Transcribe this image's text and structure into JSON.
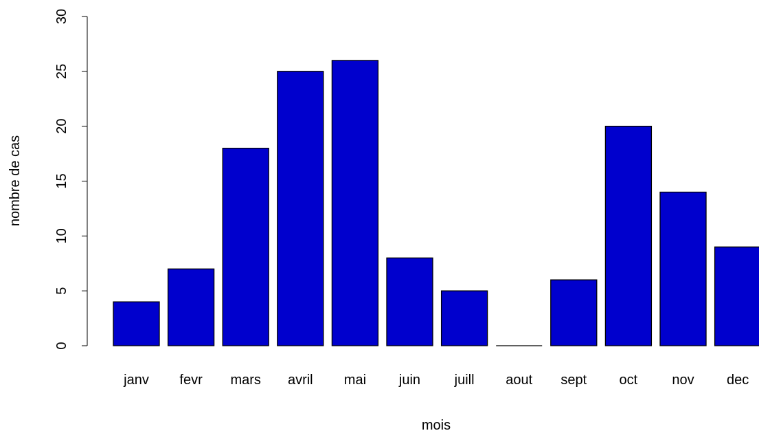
{
  "chart_data": {
    "type": "bar",
    "xlabel": "mois",
    "ylabel": "nombre de cas",
    "categories": [
      "janv",
      "fevr",
      "mars",
      "avril",
      "mai",
      "juin",
      "juill",
      "aout",
      "sept",
      "oct",
      "nov",
      "dec"
    ],
    "values": [
      4,
      7,
      18,
      25,
      26,
      8,
      5,
      0,
      6,
      20,
      14,
      9
    ],
    "color": "#0000CD",
    "ylim": [
      0,
      30
    ],
    "yticks": [
      0,
      5,
      10,
      15,
      20,
      25,
      30
    ],
    "grid": false
  }
}
